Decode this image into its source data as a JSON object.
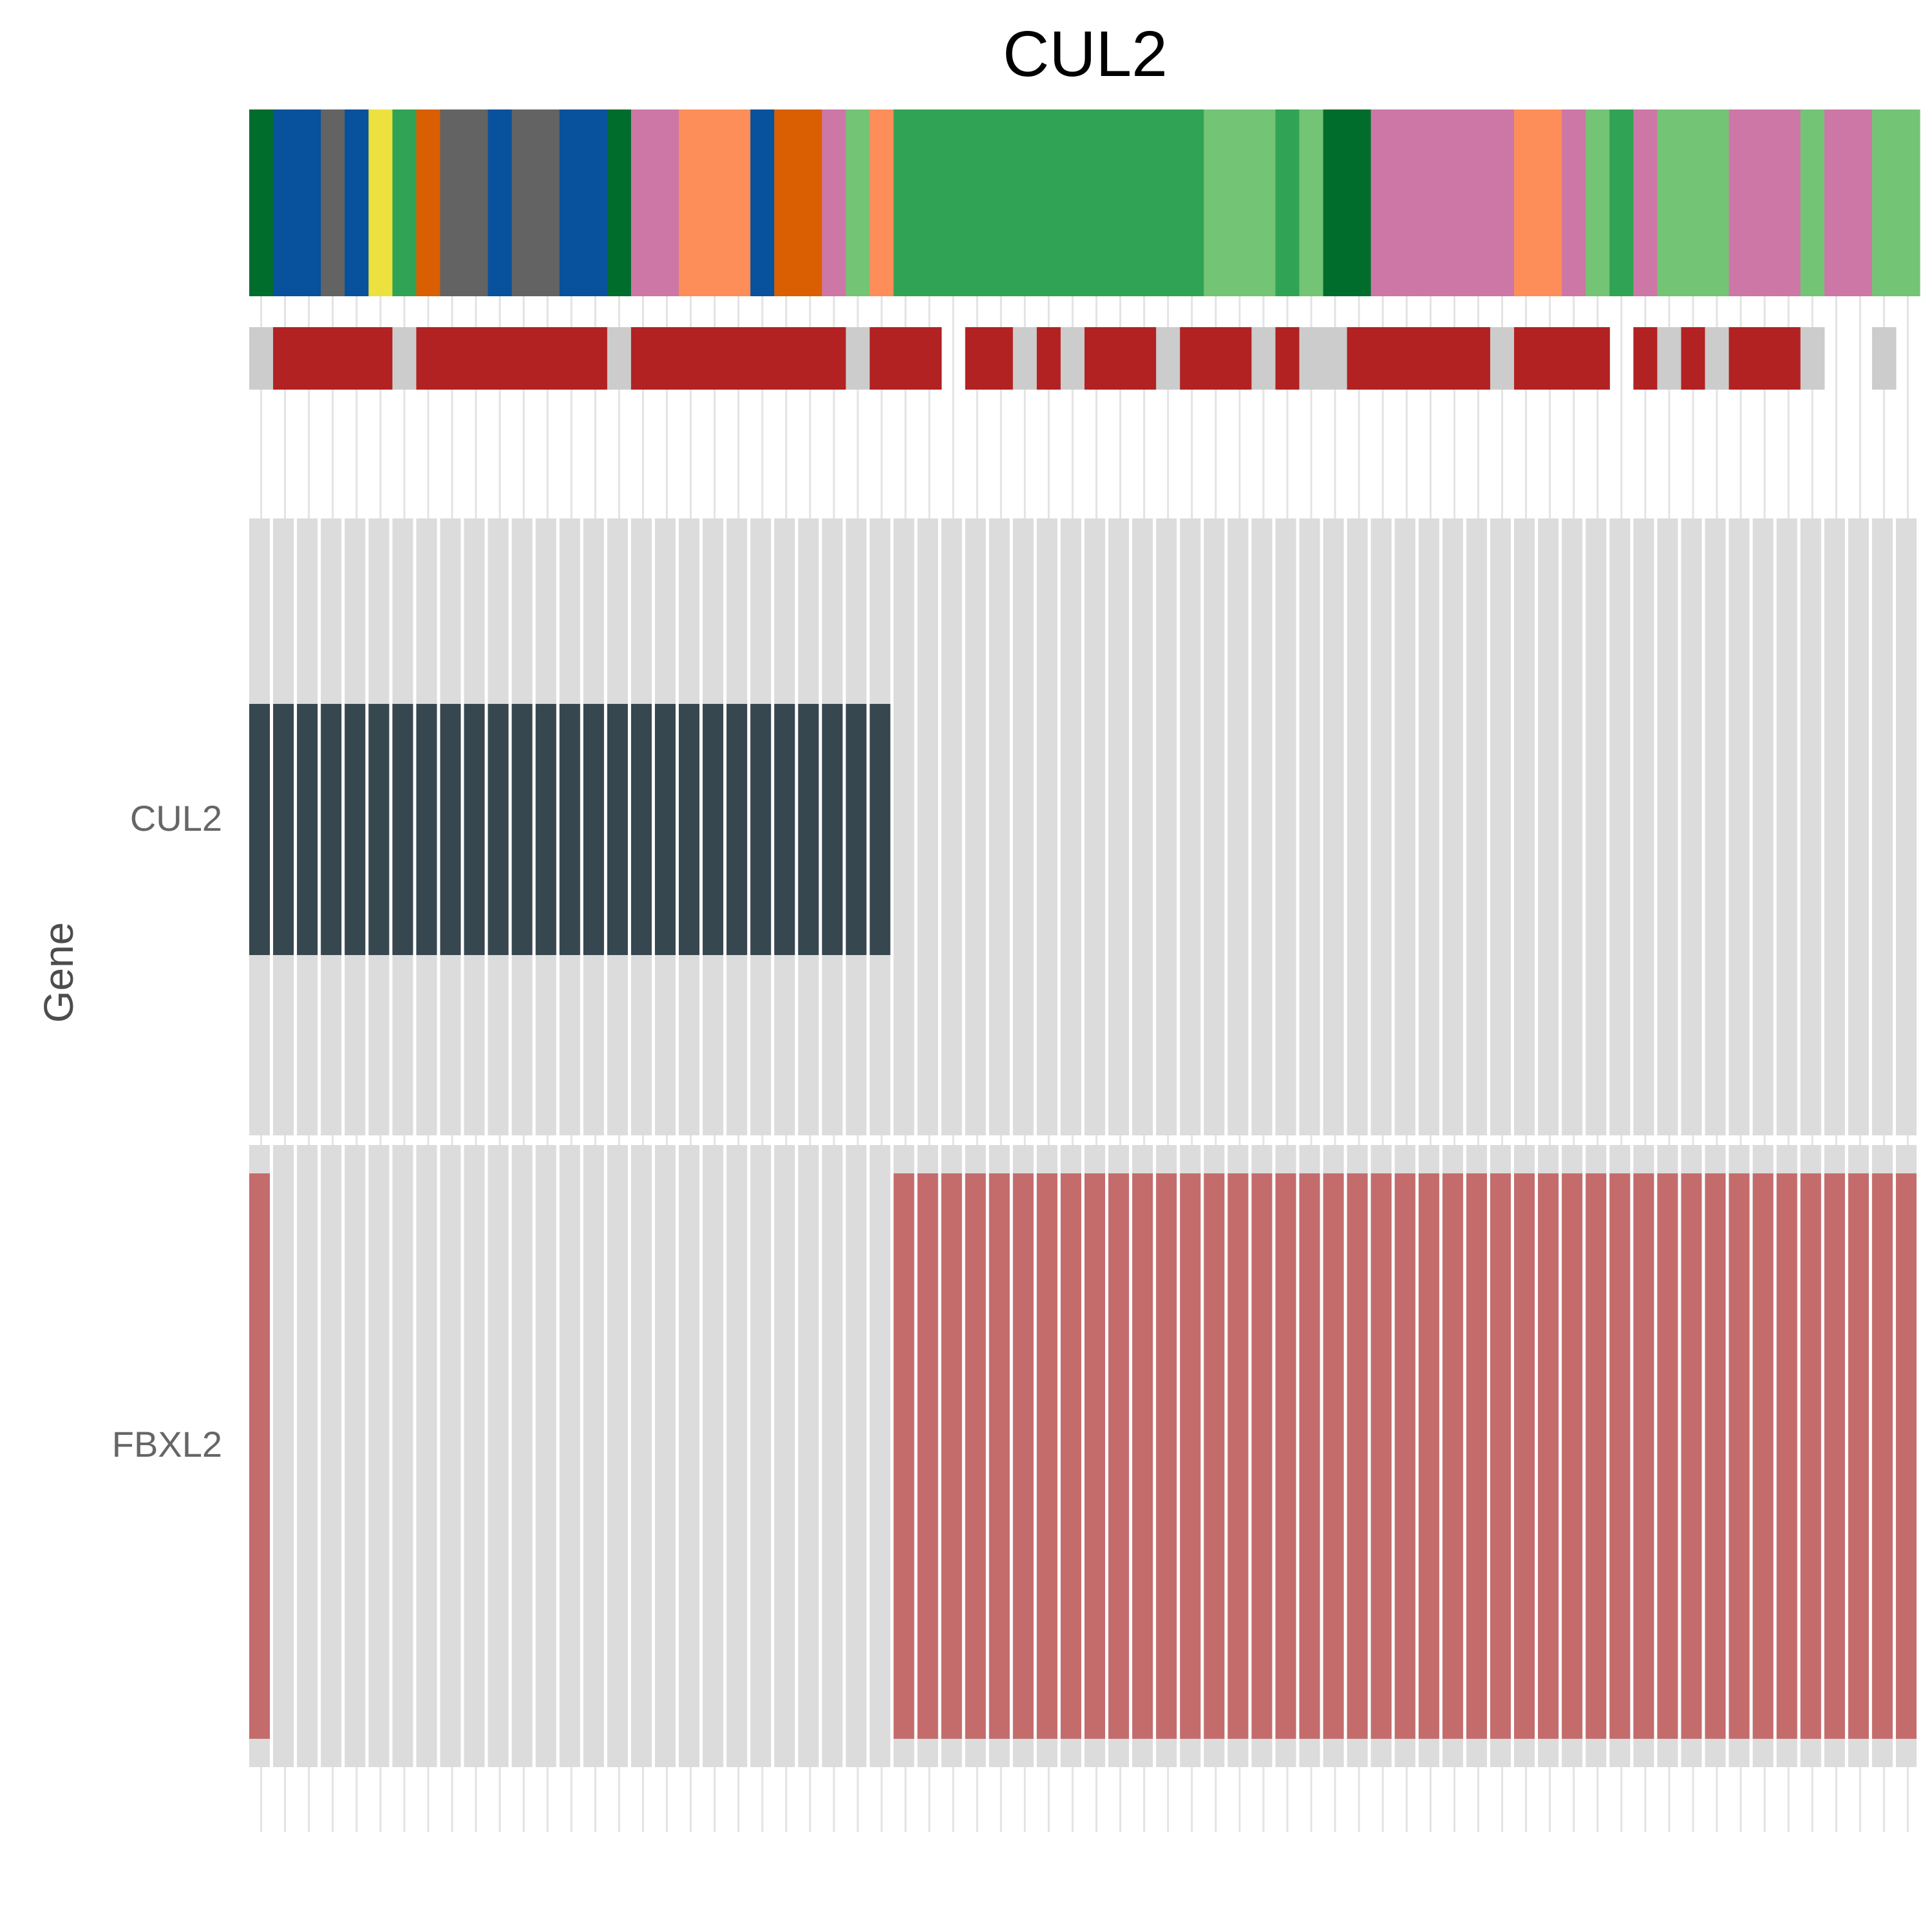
{
  "chart_data": {
    "type": "heatmap",
    "title": "CUL2",
    "ylabel": "Gene",
    "xlabel": "",
    "n_samples": 70,
    "grid": true,
    "legend": "none",
    "rows": [
      "CUL2",
      "FBXL2"
    ],
    "alteration_colors": {
      "CUL2": "#37474f",
      "FBXL2": "#c46c6c",
      "none": "#dcdcdc"
    },
    "annotation_top": [
      "#006d2c",
      "#08519c",
      "#08519c",
      "#636363",
      "#08519c",
      "#ece13e",
      "#31a354",
      "#d95f02",
      "#636363",
      "#636363",
      "#08519c",
      "#636363",
      "#636363",
      "#08519c",
      "#08519c",
      "#006d2c",
      "#cd77a6",
      "#cd77a6",
      "#fd8d59",
      "#fd8d59",
      "#fd8d59",
      "#08519c",
      "#d95f02",
      "#d95f02",
      "#cd77a6",
      "#74c476",
      "#fd8d59",
      "#31a354",
      "#31a354",
      "#31a354",
      "#31a354",
      "#31a354",
      "#31a354",
      "#31a354",
      "#31a354",
      "#31a354",
      "#31a354",
      "#31a354",
      "#31a354",
      "#31a354",
      "#74c476",
      "#74c476",
      "#74c476",
      "#31a354",
      "#74c476",
      "#006d2c",
      "#006d2c",
      "#cd77a6",
      "#cd77a6",
      "#cd77a6",
      "#cd77a6",
      "#cd77a6",
      "#cd77a6",
      "#fd8d59",
      "#fd8d59",
      "#cd77a6",
      "#74c476",
      "#31a354",
      "#cd77a6",
      "#74c476",
      "#74c476",
      "#74c476",
      "#cd77a6",
      "#cd77a6",
      "#cd77a6",
      "#74c476",
      "#cd77a6",
      "#cd77a6",
      "#74c476",
      "#74c476"
    ],
    "annotation_second": [
      "#cccccc",
      "#b22222",
      "#b22222",
      "#b22222",
      "#b22222",
      "#b22222",
      "#cccccc",
      "#b22222",
      "#b22222",
      "#b22222",
      "#b22222",
      "#b22222",
      "#b22222",
      "#b22222",
      "#b22222",
      "#cccccc",
      "#b22222",
      "#b22222",
      "#b22222",
      "#b22222",
      "#b22222",
      "#b22222",
      "#b22222",
      "#b22222",
      "#b22222",
      "#cccccc",
      "#b22222",
      "#b22222",
      "#b22222",
      null,
      "#b22222",
      "#b22222",
      "#cccccc",
      "#b22222",
      "#cccccc",
      "#b22222",
      "#b22222",
      "#b22222",
      "#cccccc",
      "#b22222",
      "#b22222",
      "#b22222",
      "#cccccc",
      "#b22222",
      "#cccccc",
      "#cccccc",
      "#b22222",
      "#b22222",
      "#b22222",
      "#b22222",
      "#b22222",
      "#b22222",
      "#cccccc",
      "#b22222",
      "#b22222",
      "#b22222",
      "#b22222",
      null,
      "#b22222",
      "#cccccc",
      "#b22222",
      "#cccccc",
      "#b22222",
      "#b22222",
      "#b22222",
      "#cccccc",
      null,
      null,
      "#cccccc",
      null
    ],
    "altered": {
      "CUL2": [
        1,
        1,
        1,
        1,
        1,
        1,
        1,
        1,
        1,
        1,
        1,
        1,
        1,
        1,
        1,
        1,
        1,
        1,
        1,
        1,
        1,
        1,
        1,
        1,
        1,
        1,
        1,
        0,
        0,
        0,
        0,
        0,
        0,
        0,
        0,
        0,
        0,
        0,
        0,
        0,
        0,
        0,
        0,
        0,
        0,
        0,
        0,
        0,
        0,
        0,
        0,
        0,
        0,
        0,
        0,
        0,
        0,
        0,
        0,
        0,
        0,
        0,
        0,
        0,
        0,
        0,
        0,
        0,
        0,
        0
      ],
      "FBXL2": [
        1,
        0,
        0,
        0,
        0,
        0,
        0,
        0,
        0,
        0,
        0,
        0,
        0,
        0,
        0,
        0,
        0,
        0,
        0,
        0,
        0,
        0,
        0,
        0,
        0,
        0,
        0,
        1,
        1,
        1,
        1,
        1,
        1,
        1,
        1,
        1,
        1,
        1,
        1,
        1,
        1,
        1,
        1,
        1,
        1,
        1,
        1,
        1,
        1,
        1,
        1,
        1,
        1,
        1,
        1,
        1,
        1,
        1,
        1,
        1,
        1,
        1,
        1,
        1,
        1,
        1,
        1,
        1,
        1,
        1
      ]
    }
  }
}
